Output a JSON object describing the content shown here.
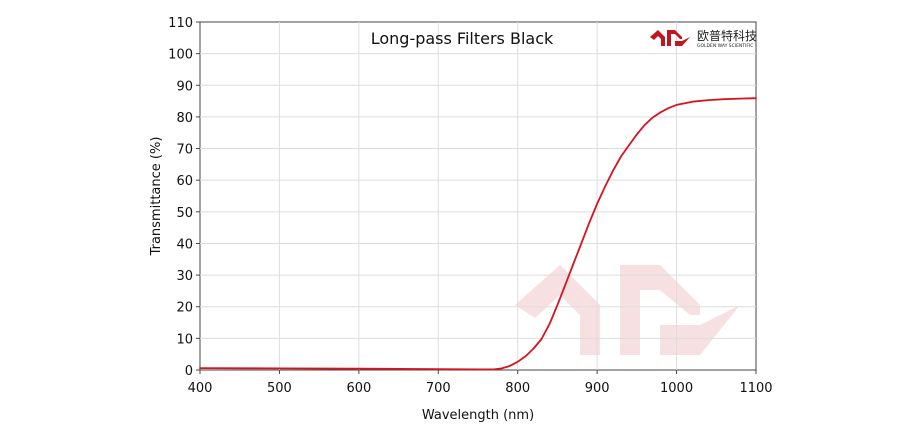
{
  "chart_data": {
    "type": "line",
    "title": "Long-pass Filters Black",
    "xlabel": "Wavelength (nm)",
    "ylabel": "Transmittance (%)",
    "xlim": [
      400,
      1100
    ],
    "ylim": [
      0,
      110
    ],
    "x_ticks": [
      400,
      500,
      600,
      700,
      800,
      900,
      1000,
      1100
    ],
    "y_ticks": [
      0,
      10,
      20,
      30,
      40,
      50,
      60,
      70,
      80,
      90,
      100,
      110
    ],
    "grid": true,
    "series": [
      {
        "color": "#d7141e",
        "x": [
          400,
          500,
          600,
          700,
          750,
          770,
          780,
          790,
          800,
          810,
          820,
          830,
          840,
          850,
          860,
          870,
          880,
          890,
          900,
          910,
          920,
          930,
          940,
          950,
          960,
          970,
          980,
          990,
          1000,
          1020,
          1040,
          1060,
          1080,
          1100
        ],
        "y": [
          0.6,
          0.5,
          0.4,
          0.3,
          0.2,
          0.2,
          0.5,
          1.3,
          2.6,
          4.4,
          6.8,
          9.8,
          14.5,
          20.5,
          27,
          33.5,
          40,
          46.5,
          52.5,
          58,
          63,
          67.5,
          71,
          74.5,
          77.5,
          79.8,
          81.5,
          82.8,
          83.8,
          84.8,
          85.3,
          85.6,
          85.8,
          85.9
        ]
      }
    ]
  },
  "logo": {
    "cn": "欧普特科技",
    "en": "GOLDEN WAY SCIENTIFIC",
    "brand_color": "#c0161f"
  }
}
